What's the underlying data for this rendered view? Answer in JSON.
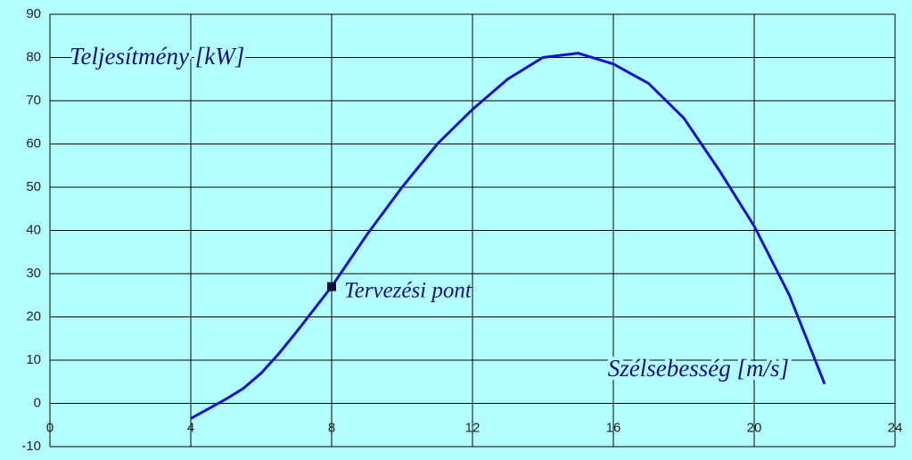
{
  "chart_data": {
    "type": "line",
    "y_label": "Teljesítmény [kW]",
    "x_label": "Szélsebesség [m/s]",
    "x": [
      4,
      5,
      5.5,
      6,
      6.5,
      7,
      8,
      9,
      10,
      11,
      12,
      13,
      14,
      15,
      16,
      17,
      18,
      19,
      20,
      21,
      22
    ],
    "series": [
      {
        "color": "#1414c8",
        "values": [
          -3.5,
          1,
          3.5,
          7,
          11.5,
          16.5,
          27,
          39,
          50,
          60,
          68,
          75,
          80,
          81,
          78.5,
          74,
          66,
          54,
          41,
          25,
          4.5
        ]
      }
    ],
    "annotations": [
      {
        "text": "Tervezési pont",
        "x": 8,
        "y": 27
      }
    ],
    "xlim": [
      0,
      24
    ],
    "xticks": [
      0,
      4,
      8,
      12,
      16,
      20,
      24
    ],
    "ylim": [
      -10,
      90
    ],
    "yticks": [
      -10,
      0,
      10,
      20,
      30,
      40,
      50,
      60,
      70,
      80,
      90
    ],
    "grid": true,
    "background": "#b4ffff"
  }
}
